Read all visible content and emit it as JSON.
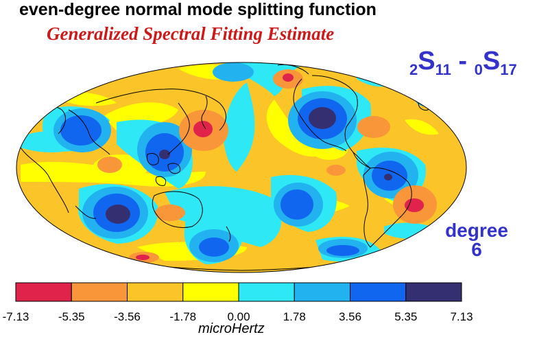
{
  "title": "even-degree normal mode splitting function",
  "subtitle": "Generalized Spectral Fitting Estimate",
  "mode": {
    "left_sub": "2",
    "left_main": "S",
    "left_idx": "11",
    "sep": " - ",
    "right_sub": "0",
    "right_main": "S",
    "right_idx": "17"
  },
  "degree": {
    "line1": "degree",
    "line2": "6"
  },
  "colorbar": {
    "colors": [
      "#e0234a",
      "#f9963a",
      "#fbc52a",
      "#ffff00",
      "#2ee8f5",
      "#22b2f0",
      "#1166f0",
      "#332f70"
    ],
    "labels": [
      "-7.13",
      "-5.35",
      "-3.56",
      "-1.78",
      "0.00",
      "1.78",
      "3.56",
      "5.35",
      "7.13"
    ],
    "unit": "microHertz"
  },
  "map_colors": {
    "background": "#fbc52a",
    "light_neg": "#ffff00",
    "zero_pos": "#2ee8f5",
    "mid_pos": "#22b2f0",
    "pos": "#1166f0",
    "max_pos": "#332f70",
    "mid_neg": "#f9963a",
    "max_neg": "#e0234a",
    "coast": "#000000"
  }
}
